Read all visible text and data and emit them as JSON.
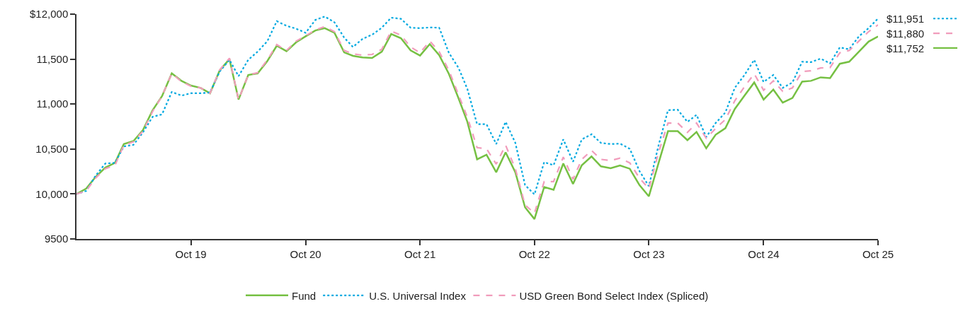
{
  "chart_data": {
    "type": "line",
    "x": [
      "2018-10",
      "2018-11",
      "2018-12",
      "2019-01",
      "2019-02",
      "2019-03",
      "2019-04",
      "2019-05",
      "2019-06",
      "2019-07",
      "2019-08",
      "2019-09",
      "2019-10",
      "2019-11",
      "2019-12",
      "2020-01",
      "2020-02",
      "2020-03",
      "2020-04",
      "2020-05",
      "2020-06",
      "2020-07",
      "2020-08",
      "2020-09",
      "2020-10",
      "2020-11",
      "2020-12",
      "2021-01",
      "2021-02",
      "2021-03",
      "2021-04",
      "2021-05",
      "2021-06",
      "2021-07",
      "2021-08",
      "2021-09",
      "2021-10",
      "2021-11",
      "2021-12",
      "2022-01",
      "2022-02",
      "2022-03",
      "2022-04",
      "2022-05",
      "2022-06",
      "2022-07",
      "2022-08",
      "2022-09",
      "2022-10",
      "2022-11",
      "2022-12",
      "2023-01",
      "2023-02",
      "2023-03",
      "2023-04",
      "2023-05",
      "2023-06",
      "2023-07",
      "2023-08",
      "2023-09",
      "2023-10",
      "2023-11",
      "2023-12",
      "2024-01",
      "2024-02",
      "2024-03",
      "2024-04",
      "2024-05",
      "2024-06",
      "2024-07",
      "2024-08",
      "2024-09",
      "2024-10",
      "2024-11",
      "2024-12",
      "2025-01",
      "2025-02",
      "2025-03",
      "2025-04",
      "2025-05",
      "2025-06",
      "2025-07",
      "2025-08",
      "2025-09",
      "2025-10"
    ],
    "series": [
      {
        "name": "Fund",
        "color": "#76c043",
        "line_style": "solid",
        "values": [
          10000,
          10060,
          10190,
          10294,
          10346,
          10555,
          10589,
          10711,
          10932,
          11088,
          11341,
          11258,
          11206,
          11180,
          11120,
          11375,
          11500,
          11050,
          11323,
          11341,
          11479,
          11648,
          11588,
          11687,
          11753,
          11818,
          11844,
          11792,
          11575,
          11536,
          11518,
          11513,
          11583,
          11779,
          11732,
          11596,
          11539,
          11667,
          11544,
          11336,
          11062,
          10802,
          10385,
          10437,
          10242,
          10463,
          10242,
          9852,
          9721,
          10078,
          10047,
          10339,
          10112,
          10320,
          10417,
          10307,
          10286,
          10318,
          10281,
          10099,
          9974,
          10346,
          10698,
          10698,
          10599,
          10690,
          10508,
          10659,
          10732,
          10945,
          11094,
          11240,
          11049,
          11161,
          11016,
          11068,
          11250,
          11258,
          11297,
          11289,
          11448,
          11471,
          11583,
          11695,
          11752
        ]
      },
      {
        "name": "U.S. Universal Index",
        "color": "#00a9e0",
        "line_style": "dotted",
        "values": [
          10000,
          10034,
          10203,
          10339,
          10346,
          10529,
          10547,
          10685,
          10859,
          10885,
          11135,
          11094,
          11120,
          11120,
          11128,
          11362,
          11492,
          11310,
          11492,
          11583,
          11700,
          11922,
          11870,
          11838,
          11792,
          11935,
          11974,
          11909,
          11739,
          11635,
          11726,
          11771,
          11849,
          11961,
          11948,
          11849,
          11844,
          11852,
          11849,
          11570,
          11401,
          11167,
          10776,
          10776,
          10555,
          10802,
          10568,
          10099,
          9995,
          10354,
          10320,
          10607,
          10359,
          10607,
          10664,
          10568,
          10555,
          10560,
          10503,
          10255,
          10086,
          10542,
          10932,
          10937,
          10802,
          10880,
          10633,
          10789,
          10906,
          11180,
          11323,
          11492,
          11245,
          11323,
          11180,
          11240,
          11471,
          11466,
          11505,
          11453,
          11630,
          11609,
          11753,
          11844,
          11951
        ]
      },
      {
        "name": "USD Green Bond Select Index (Spliced)",
        "color": "#f19cbb",
        "line_style": "dashed",
        "values": [
          10000,
          10034,
          10177,
          10281,
          10320,
          10542,
          10581,
          10698,
          10919,
          11088,
          11341,
          11250,
          11198,
          11180,
          11120,
          11380,
          11510,
          11050,
          11323,
          11349,
          11492,
          11661,
          11596,
          11700,
          11760,
          11823,
          11862,
          11805,
          11596,
          11557,
          11544,
          11552,
          11609,
          11812,
          11766,
          11635,
          11570,
          11700,
          11583,
          11375,
          11101,
          10854,
          10516,
          10503,
          10333,
          10542,
          10281,
          9878,
          9786,
          10138,
          10138,
          10411,
          10164,
          10385,
          10484,
          10385,
          10372,
          10398,
          10346,
          10177,
          10060,
          10463,
          10789,
          10789,
          10685,
          10789,
          10620,
          10729,
          10828,
          11036,
          11193,
          11336,
          11154,
          11258,
          11141,
          11180,
          11362,
          11370,
          11401,
          11406,
          11570,
          11596,
          11700,
          11805,
          11880
        ]
      }
    ],
    "xlim": [
      "2018-10",
      "2025-10"
    ],
    "xticks": [
      {
        "value": "2019-10",
        "label": "Oct 19"
      },
      {
        "value": "2020-10",
        "label": "Oct 20"
      },
      {
        "value": "2021-10",
        "label": "Oct 21"
      },
      {
        "value": "2022-10",
        "label": "Oct 22"
      },
      {
        "value": "2023-10",
        "label": "Oct 23"
      },
      {
        "value": "2024-10",
        "label": "Oct 24"
      },
      {
        "value": "2025-10",
        "label": "Oct 25"
      }
    ],
    "ylim": [
      9500,
      12000
    ],
    "yticks": [
      9500,
      {
        "value": 10000,
        "label": "10,000"
      },
      {
        "value": 10500,
        "label": "10,500"
      },
      {
        "value": 11000,
        "label": "11,000"
      },
      {
        "value": 11500,
        "label": "11,500"
      },
      {
        "value": 12000,
        "label": "$12,000"
      }
    ],
    "annotations": [
      {
        "text": "$11,951",
        "x": "2025-10",
        "y": 11951
      },
      {
        "text": "$11,880",
        "x": "2025-10",
        "y": 11880
      },
      {
        "text": "$11,752",
        "x": "2025-10",
        "y": 11752
      }
    ],
    "legend": "bottom",
    "marker": "none"
  }
}
